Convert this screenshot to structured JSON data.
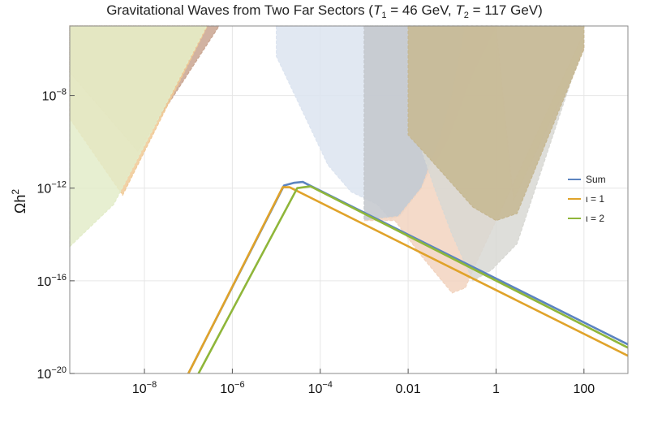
{
  "chart_data": {
    "type": "line",
    "title": "Gravitational Waves from Two Far Sectors (T₁ = 46 GeV, T₂ = 117 GeV)",
    "title_parts": {
      "prefix": "Gravitational Waves from Two Far Sectors (",
      "t1_symbol": "T",
      "t1_sub": "1",
      "t1_value": " = 46 GeV, ",
      "t2_symbol": "T",
      "t2_sub": "2",
      "t2_value": " = 117 GeV)"
    },
    "xlabel": "",
    "ylabel": "Ωh²",
    "ylabel_parts": {
      "base": "Ωh",
      "sup": "2"
    },
    "x_scale": "log",
    "y_scale": "log",
    "xlim": [
      2e-10,
      1000
    ],
    "ylim": [
      1e-20,
      1e-05
    ],
    "grid": true,
    "legend_position": "right",
    "x_ticks": [
      {
        "value": 1e-08,
        "label": {
          "base": "10",
          "exp": "−8"
        }
      },
      {
        "value": 1e-06,
        "label": {
          "base": "10",
          "exp": "−6"
        }
      },
      {
        "value": 0.0001,
        "label": {
          "base": "10",
          "exp": "−4"
        }
      },
      {
        "value": 0.01,
        "label": {
          "base": "0.01",
          "exp": ""
        }
      },
      {
        "value": 1,
        "label": {
          "base": "1",
          "exp": ""
        }
      },
      {
        "value": 100,
        "label": {
          "base": "100",
          "exp": ""
        }
      }
    ],
    "y_ticks": [
      {
        "value": 1e-08,
        "label": {
          "base": "10",
          "exp": "−8"
        }
      },
      {
        "value": 1e-12,
        "label": {
          "base": "10",
          "exp": "−12"
        }
      },
      {
        "value": 1e-16,
        "label": {
          "base": "10",
          "exp": "−16"
        }
      },
      {
        "value": 1e-20,
        "label": {
          "base": "10",
          "exp": "−20"
        }
      }
    ],
    "series": [
      {
        "name": "Sum",
        "color": "#5b84c0",
        "points": [
          [
            1e-07,
            1e-20
          ],
          [
            1.5e-05,
            1.3e-12
          ],
          [
            2.5e-05,
            1.7e-12
          ],
          [
            4e-05,
            1.85e-12
          ],
          [
            1000,
            1.8e-19
          ]
        ]
      },
      {
        "name": "ι = 1",
        "color": "#e0a32a",
        "points": [
          [
            1e-07,
            1e-20
          ],
          [
            1.4e-05,
            1.1e-12
          ],
          [
            2e-05,
            1.1e-12
          ],
          [
            1000,
            5.8e-20
          ]
        ]
      },
      {
        "name": "ι = 2",
        "color": "#8fb63a",
        "points": [
          [
            1.7e-07,
            1e-20
          ],
          [
            3e-05,
            1e-12
          ],
          [
            6e-05,
            1.2e-12
          ],
          [
            1000,
            1.3e-19
          ]
        ]
      }
    ],
    "sensitivity_regions": [
      {
        "color": "#c9a591",
        "points": [
          [
            2e-10,
            1e-07
          ],
          [
            7e-09,
            4e-11
          ],
          [
            5e-07,
            1e-05
          ],
          [
            2e-10,
            1e-05
          ]
        ]
      },
      {
        "color": "#f0c995",
        "points": [
          [
            2e-10,
            1e-09
          ],
          [
            3.2e-09,
            5e-13
          ],
          [
            2.7e-07,
            1e-05
          ],
          [
            2e-10,
            1e-05
          ]
        ]
      },
      {
        "color": "#e3ecc9",
        "points": [
          [
            2e-10,
            3e-15
          ],
          [
            2e-09,
            2e-13
          ],
          [
            2.6e-07,
            1e-05
          ],
          [
            2e-10,
            1e-05
          ]
        ]
      },
      {
        "color": "#dce4f0",
        "points": [
          [
            1e-05,
            1e-05
          ],
          [
            1e-05,
            5e-07
          ],
          [
            0.00015,
            1e-11
          ],
          [
            0.0005,
            7e-13
          ],
          [
            0.002,
            2e-13
          ],
          [
            0.004,
            4.5e-14
          ],
          [
            0.007,
            7e-14
          ],
          [
            0.02,
            1.2e-12
          ],
          [
            0.08,
            1.3e-10
          ],
          [
            0.3,
            1e-07
          ],
          [
            1,
            1e-05
          ]
        ]
      },
      {
        "color": "#c3c7cc",
        "points": [
          [
            0.001,
            1e-05
          ],
          [
            0.001,
            4e-14
          ],
          [
            0.006,
            6e-14
          ],
          [
            0.02,
            1e-12
          ],
          [
            0.05,
            1e-10
          ],
          [
            0.1,
            1e-08
          ],
          [
            0.2,
            1e-05
          ]
        ]
      },
      {
        "color": "#f2d4bf",
        "points": [
          [
            0.001,
            4e-14
          ],
          [
            0.006,
            6e-14
          ],
          [
            0.02,
            1e-12
          ],
          [
            0.05,
            1e-10
          ],
          [
            0.1,
            1e-08
          ],
          [
            0.2,
            1e-05
          ],
          [
            1,
            1e-05
          ],
          [
            2.5,
            3e-13
          ],
          [
            100,
            1e-06
          ],
          [
            100,
            5e-06
          ],
          [
            0.3,
            3e-16
          ],
          [
            0.2,
            5e-17
          ],
          [
            0.1,
            3e-17
          ],
          [
            0.02,
            1.2e-15
          ],
          [
            0.005,
            4e-14
          ]
        ]
      },
      {
        "color": "#d8d8d4",
        "points": [
          [
            0.01,
            1e-05
          ],
          [
            0.01,
            2e-10
          ],
          [
            0.02,
            5e-11
          ],
          [
            0.04,
            1e-12
          ],
          [
            0.1,
            1e-14
          ],
          [
            0.3,
            1e-16
          ],
          [
            0.8,
            3e-16
          ],
          [
            3,
            4e-15
          ],
          [
            100,
            2e-06
          ],
          [
            100,
            1e-05
          ]
        ]
      },
      {
        "color": "#c6b791",
        "points": [
          [
            0.01,
            1e-05
          ],
          [
            0.01,
            2e-10
          ],
          [
            0.03,
            2e-11
          ],
          [
            0.3,
            1.5e-13
          ],
          [
            1,
            4e-14
          ],
          [
            3,
            8e-14
          ],
          [
            100,
            1e-06
          ],
          [
            100,
            1e-05
          ]
        ]
      }
    ]
  }
}
